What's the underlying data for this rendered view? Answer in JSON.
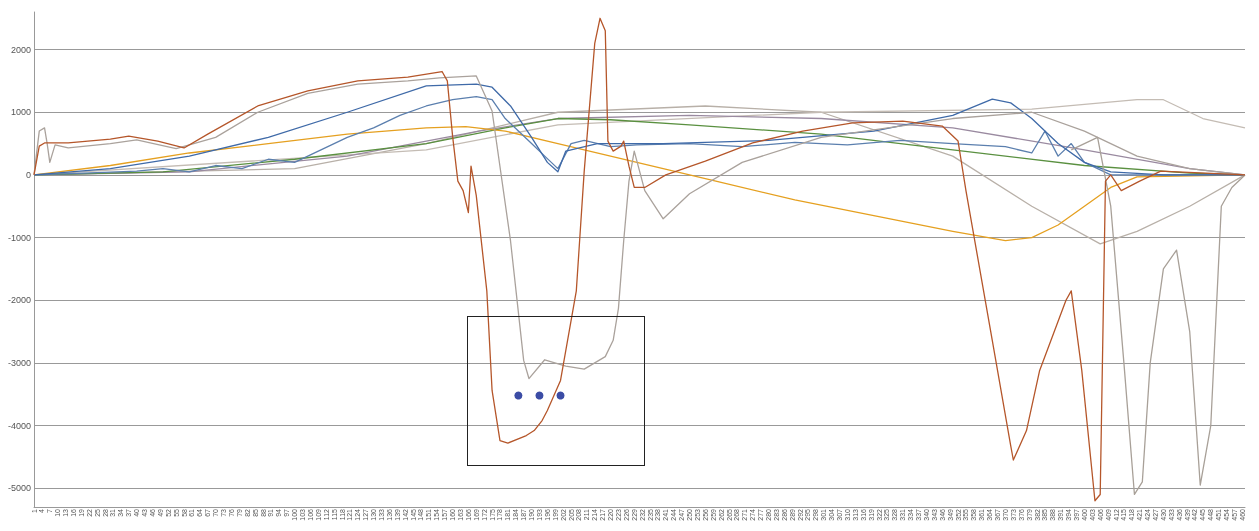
{
  "chart_data": {
    "type": "line",
    "marker": "none",
    "grid": "y",
    "xlim": [
      1,
      461
    ],
    "ylim": [
      -5300,
      2600
    ],
    "yticks": [
      2000,
      1000,
      0,
      -1000,
      -2000,
      -3000,
      -4000,
      -5000
    ],
    "xticks": [
      1,
      4,
      7,
      10,
      13,
      16,
      19,
      22,
      25,
      28,
      31,
      34,
      37,
      40,
      43,
      46,
      49,
      52,
      55,
      58,
      61,
      64,
      67,
      70,
      73,
      76,
      79,
      82,
      85,
      88,
      91,
      94,
      97,
      100,
      103,
      106,
      109,
      112,
      115,
      118,
      121,
      124,
      127,
      130,
      133,
      136,
      139,
      142,
      145,
      148,
      151,
      154,
      157,
      160,
      163,
      166,
      169,
      172,
      175,
      178,
      181,
      184,
      187,
      190,
      193,
      196,
      199,
      202,
      205,
      208,
      211,
      214,
      217,
      220,
      223,
      226,
      229,
      232,
      235,
      238,
      241,
      244,
      247,
      250,
      253,
      256,
      259,
      262,
      265,
      268,
      271,
      274,
      277,
      280,
      283,
      286,
      289,
      292,
      295,
      298,
      301,
      304,
      307,
      310,
      313,
      316,
      319,
      322,
      325,
      328,
      331,
      334,
      337,
      340,
      343,
      346,
      349,
      352,
      355,
      358,
      361,
      364,
      367,
      370,
      373,
      376,
      379,
      382,
      385,
      388,
      391,
      394,
      397,
      400,
      403,
      406,
      409,
      412,
      415,
      418,
      421,
      424,
      427,
      430,
      433,
      436,
      439,
      442,
      445,
      448,
      451,
      454,
      457,
      460
    ],
    "series": [
      {
        "color": "#b8b0a8",
        "x": [
          1,
          100,
          150,
          200,
          256,
          300,
          350,
          380,
          406,
          420,
          440,
          461
        ],
        "values": [
          0,
          100,
          500,
          1000,
          1100,
          1000,
          300,
          -500,
          -1100,
          -900,
          -500,
          0
        ]
      },
      {
        "color": "#c4bcb4",
        "x": [
          1,
          150,
          200,
          300,
          380,
          420,
          430,
          445,
          461
        ],
        "values": [
          0,
          400,
          800,
          1000,
          1050,
          1200,
          1200,
          900,
          750
        ]
      },
      {
        "color": "#9a8aa0",
        "x": [
          1,
          60,
          120,
          170,
          200,
          250,
          300,
          350,
          400,
          440,
          461
        ],
        "values": [
          0,
          50,
          300,
          700,
          900,
          950,
          900,
          750,
          400,
          100,
          0
        ]
      },
      {
        "color": "#5a9040",
        "x": [
          1,
          50,
          100,
          150,
          180,
          200,
          220,
          250,
          300,
          350,
          400,
          440,
          461
        ],
        "values": [
          0,
          50,
          250,
          500,
          750,
          900,
          880,
          800,
          650,
          400,
          150,
          30,
          0
        ]
      },
      {
        "color": "#e5a020",
        "x": [
          1,
          30,
          60,
          90,
          120,
          150,
          165,
          180,
          200,
          220,
          240,
          260,
          290,
          320,
          350,
          370,
          380,
          390,
          400,
          410,
          420,
          461
        ],
        "values": [
          0,
          150,
          350,
          500,
          650,
          750,
          770,
          700,
          500,
          300,
          100,
          -100,
          -400,
          -650,
          -900,
          -1050,
          -1000,
          -800,
          -500,
          -200,
          -30,
          0
        ]
      },
      {
        "color": "#5b7fae",
        "x": [
          1,
          20,
          40,
          50,
          60,
          70,
          80,
          90,
          100,
          110,
          120,
          130,
          140,
          150,
          160,
          169,
          175,
          180,
          185,
          190,
          195,
          200,
          205,
          210,
          220,
          230,
          250,
          270,
          290,
          310,
          330,
          350,
          370,
          380,
          385,
          390,
          395,
          400,
          410,
          461
        ],
        "values": [
          0,
          30,
          60,
          100,
          50,
          150,
          100,
          250,
          200,
          400,
          600,
          750,
          950,
          1100,
          1200,
          1250,
          1200,
          900,
          700,
          500,
          300,
          100,
          500,
          550,
          450,
          480,
          500,
          450,
          520,
          480,
          550,
          500,
          450,
          350,
          700,
          300,
          500,
          200,
          0,
          0
        ]
      },
      {
        "color": "#3f6aa8",
        "x": [
          1,
          30,
          60,
          90,
          120,
          150,
          169,
          175,
          182,
          190,
          196,
          200,
          203,
          215,
          240,
          280,
          320,
          350,
          365,
          372,
          380,
          390,
          400,
          410,
          430,
          461
        ],
        "values": [
          0,
          100,
          300,
          600,
          1000,
          1420,
          1450,
          1400,
          1100,
          600,
          200,
          50,
          380,
          500,
          500,
          550,
          700,
          950,
          1210,
          1150,
          900,
          500,
          200,
          50,
          0,
          0
        ]
      },
      {
        "color": "#aaa29c",
        "x": [
          1,
          3,
          5,
          6,
          7,
          9,
          14,
          30,
          40,
          55,
          70,
          86,
          105,
          124,
          143,
          155,
          169,
          175,
          182,
          187,
          189,
          195,
          203,
          210,
          218,
          221,
          223,
          225,
          227,
          229,
          233,
          240,
          250,
          270,
          300,
          350,
          380,
          400,
          420,
          440,
          461
        ],
        "values": [
          0,
          700,
          750,
          500,
          200,
          480,
          430,
          500,
          560,
          420,
          600,
          1000,
          1300,
          1450,
          1500,
          1550,
          1580,
          1020,
          -1050,
          -2960,
          -3250,
          -2950,
          -3050,
          -3100,
          -2900,
          -2640,
          -2130,
          -1050,
          -100,
          380,
          -250,
          -700,
          -300,
          200,
          600,
          900,
          1000,
          700,
          300,
          100,
          0
        ]
      },
      {
        "color": "#a8a098",
        "x": [
          395,
          405,
          410,
          415,
          419,
          422,
          425,
          430,
          435,
          440,
          444,
          448,
          452,
          456,
          461
        ],
        "values": [
          400,
          600,
          -500,
          -3000,
          -5100,
          -4900,
          -3000,
          -1500,
          -1200,
          -2500,
          -4950,
          -4000,
          -500,
          -200,
          0
        ]
      },
      {
        "color": "#b5562a",
        "x": [
          1,
          3,
          5,
          14,
          30,
          37,
          48,
          58,
          67,
          86,
          105,
          124,
          143,
          156,
          158,
          160,
          162,
          164,
          166,
          167,
          169,
          173,
          175,
          178,
          181,
          188,
          191,
          194,
          196,
          201,
          207,
          210,
          214,
          216,
          218,
          219,
          221,
          224,
          225,
          227,
          229,
          233,
          241,
          256,
          274,
          293,
          312,
          331,
          346,
          352,
          355,
          365,
          372,
          373,
          378,
          383,
          393,
          395,
          399,
          404,
          406,
          408,
          410,
          414,
          421,
          429,
          461
        ],
        "values": [
          0,
          460,
          510,
          510,
          570,
          620,
          540,
          430,
          650,
          1100,
          1340,
          1500,
          1560,
          1650,
          1500,
          620,
          -100,
          -250,
          -600,
          140,
          -330,
          -1850,
          -3440,
          -4240,
          -4280,
          -4160,
          -4080,
          -3920,
          -3760,
          -3280,
          -1850,
          60,
          2100,
          2500,
          2300,
          540,
          380,
          460,
          540,
          140,
          -200,
          -200,
          0,
          220,
          510,
          700,
          830,
          860,
          780,
          540,
          -250,
          -2640,
          -4320,
          -4550,
          -4080,
          -3120,
          -2000,
          -1850,
          -3120,
          -5200,
          -5100,
          -100,
          0,
          -250,
          -100,
          60,
          0
        ]
      },
      {
        "type": "scatter",
        "marker": "circle",
        "color": "#0a1f8f",
        "x": [
          185,
          193,
          201
        ],
        "values": [
          -3520,
          -3520,
          -3520
        ]
      }
    ]
  }
}
